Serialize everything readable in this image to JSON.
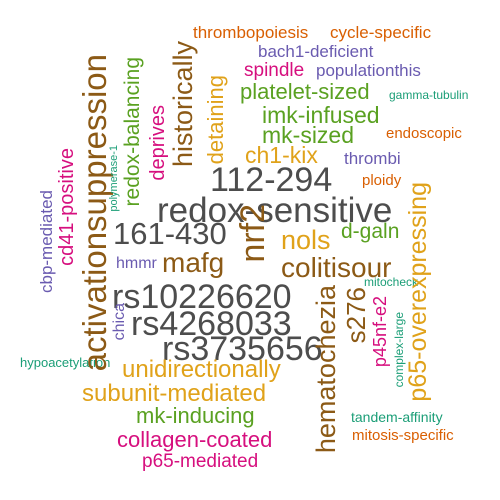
{
  "colors": {
    "dark_gray": "#4d4d4d",
    "brown": "#8c5a16",
    "gold": "#e0a21a",
    "green": "#5aa121",
    "magenta": "#d60f7e",
    "purple": "#6a5bb0",
    "orange": "#d95f02",
    "teal": "#1b9e77"
  },
  "words": {
    "thrombopoiesis": "thrombopoiesis",
    "cycle_specific": "cycle-specific",
    "bach1_deficient": "bach1-deficient",
    "spindle": "spindle",
    "populationthis": "populationthis",
    "platelet_sized": "platelet-sized",
    "gamma_tubulin": "gamma-tubulin",
    "imk_infused": "imk-infused",
    "mk_sized": "mk-sized",
    "endoscopic": "endoscopic",
    "ch1_kix": "ch1-kix",
    "thrombi": "thrombi",
    "n112_294": "112-294",
    "ploidy": "ploidy",
    "redox_sensitive": "redox-sensitive",
    "n161_430": "161-430",
    "nols": "nols",
    "d_galn": "d-galn",
    "hmmr": "hmmr",
    "mafg": "mafg",
    "colitisour": "colitisour",
    "mitocheck": "mitocheck",
    "rs10226620": "rs10226620",
    "rs4268033": "rs4268033",
    "rs3735656": "rs3735656",
    "hypoacetylation": "hypoacetylation",
    "unidirectionally": "unidirectionally",
    "subunit_mediated": "subunit-mediated",
    "mk_inducing": "mk-inducing",
    "tandem_affinity": "tandem-affinity",
    "collagen_coated": "collagen-coated",
    "mitosis_specific": "mitosis-specific",
    "p65_mediated": "p65-mediated",
    "activationsuppression": "activationsuppression",
    "redox_balancing": "redox-balancing",
    "deprives": "deprives",
    "historically": "historically",
    "detaining": "detaining",
    "polymerase_1": "polymerase-1",
    "cd41_positive": "cd41-positive",
    "cbp_mediated": "cbp-mediated",
    "chica": "chica",
    "nrf2": "nrf2",
    "hematochezia": "hematochezia",
    "s276": "s276",
    "p45nf_e2": "p45nf-e2",
    "complex_large": "complex-large",
    "p65_overexpressing": "p65-overexpressing"
  }
}
